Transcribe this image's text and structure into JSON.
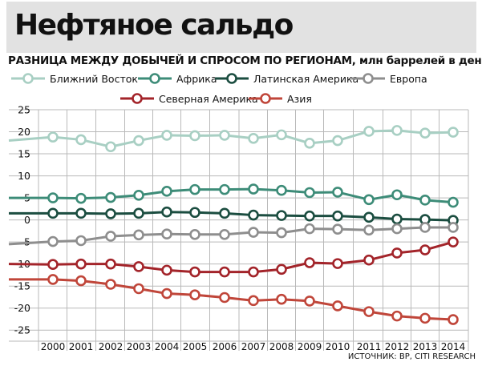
{
  "colors": {
    "background": "#ffffff",
    "title_band": "#e2e2e2",
    "grid": "#b9b9b9",
    "axis_text": "#111111"
  },
  "chart_data": {
    "type": "line",
    "title": "Нефтяное сальдо",
    "subtitle": "РАЗНИЦА МЕЖДУ ДОБЫЧЕЙ И СПРОСОМ ПО РЕГИОНАМ, млн баррелей в день",
    "source": "ИСТОЧНИК: BP, CITI RESEARCH",
    "x": [
      "2000",
      "2001",
      "2002",
      "2003",
      "2004",
      "2005",
      "2006",
      "2007",
      "2008",
      "2009",
      "2010",
      "2011",
      "2012",
      "2013",
      "2014"
    ],
    "yticks": [
      "25",
      "20",
      "15",
      "10",
      "5",
      "0",
      "-5",
      "-10",
      "-15",
      "-20",
      "-25"
    ],
    "ylim": [
      -27.5,
      25
    ],
    "grid": true,
    "legend_position": "top",
    "series": [
      {
        "name": "Ближний Восток",
        "color": "#a8cfc3",
        "start": 18,
        "values": [
          18.8,
          18.2,
          16.6,
          18.0,
          19.2,
          19.1,
          19.2,
          18.5,
          19.3,
          17.4,
          18.0,
          20.1,
          20.3,
          19.7,
          19.9
        ]
      },
      {
        "name": "Африка",
        "color": "#3d8c78",
        "start": 5,
        "values": [
          5.0,
          4.9,
          5.1,
          5.6,
          6.5,
          6.9,
          6.9,
          7.0,
          6.7,
          6.2,
          6.3,
          4.6,
          5.7,
          4.5,
          4.0
        ]
      },
      {
        "name": "Латинская Америка",
        "color": "#1b4d40",
        "start": 1.5,
        "values": [
          1.5,
          1.5,
          1.4,
          1.5,
          1.8,
          1.7,
          1.5,
          1.1,
          1.0,
          0.9,
          0.9,
          0.6,
          0.2,
          0.1,
          -0.1
        ]
      },
      {
        "name": "Европа",
        "color": "#8e8e8e",
        "start": -5.5,
        "values": [
          -4.9,
          -4.7,
          -3.7,
          -3.4,
          -3.2,
          -3.3,
          -3.3,
          -2.8,
          -2.9,
          -2.0,
          -2.1,
          -2.3,
          -2.0,
          -1.7,
          -1.7
        ]
      },
      {
        "name": "Северная Америка",
        "color": "#a3242a",
        "start": -10,
        "values": [
          -10.1,
          -10.0,
          -10.0,
          -10.6,
          -11.4,
          -11.8,
          -11.8,
          -11.8,
          -11.2,
          -9.7,
          -9.9,
          -9.1,
          -7.5,
          -6.8,
          -5.0
        ]
      },
      {
        "name": "Азия",
        "color": "#c0463a",
        "start": -13.5,
        "values": [
          -13.5,
          -13.8,
          -14.6,
          -15.6,
          -16.7,
          -17.0,
          -17.6,
          -18.3,
          -18.0,
          -18.4,
          -19.5,
          -20.8,
          -21.8,
          -22.3,
          -22.6
        ]
      }
    ]
  }
}
